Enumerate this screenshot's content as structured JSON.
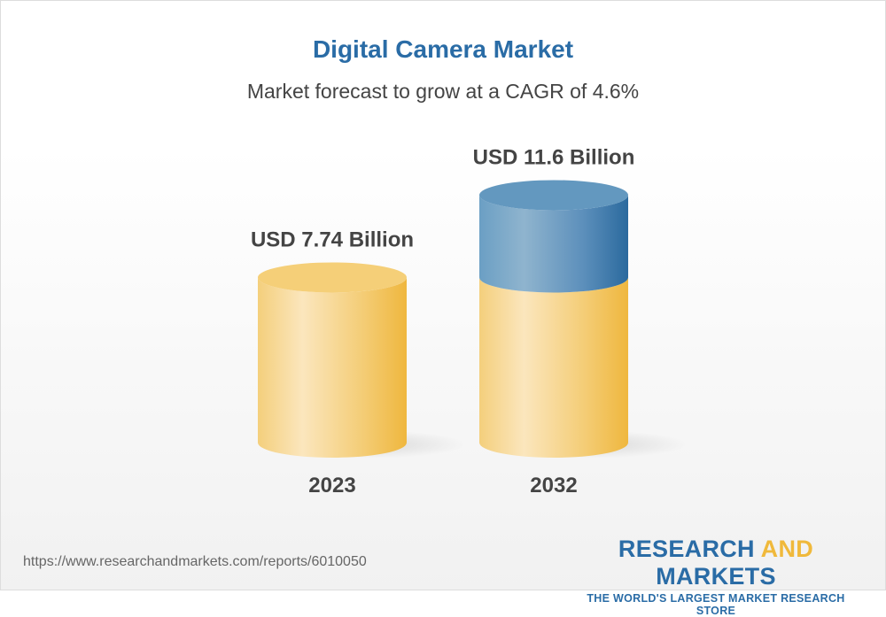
{
  "title": "Digital Camera Market",
  "subtitle": "Market forecast to grow at a CAGR of 4.6%",
  "chart_data": {
    "type": "bar",
    "style": "3d-cylinder",
    "categories": [
      "2023",
      "2032"
    ],
    "values": [
      7.74,
      11.6
    ],
    "data_labels": [
      "USD 7.74 Billion",
      "USD 11.6 Billion"
    ],
    "unit": "USD Billion",
    "cagr": "4.6%",
    "colors": {
      "base": "#f3c965",
      "growth": "#4a84b4"
    }
  },
  "footer": {
    "url": "https://www.researchandmarkets.com/reports/6010050",
    "logo_word1": "RESEARCH",
    "logo_word2": "AND",
    "logo_word3": "MARKETS",
    "logo_tagline": "THE WORLD'S LARGEST MARKET RESEARCH STORE"
  }
}
